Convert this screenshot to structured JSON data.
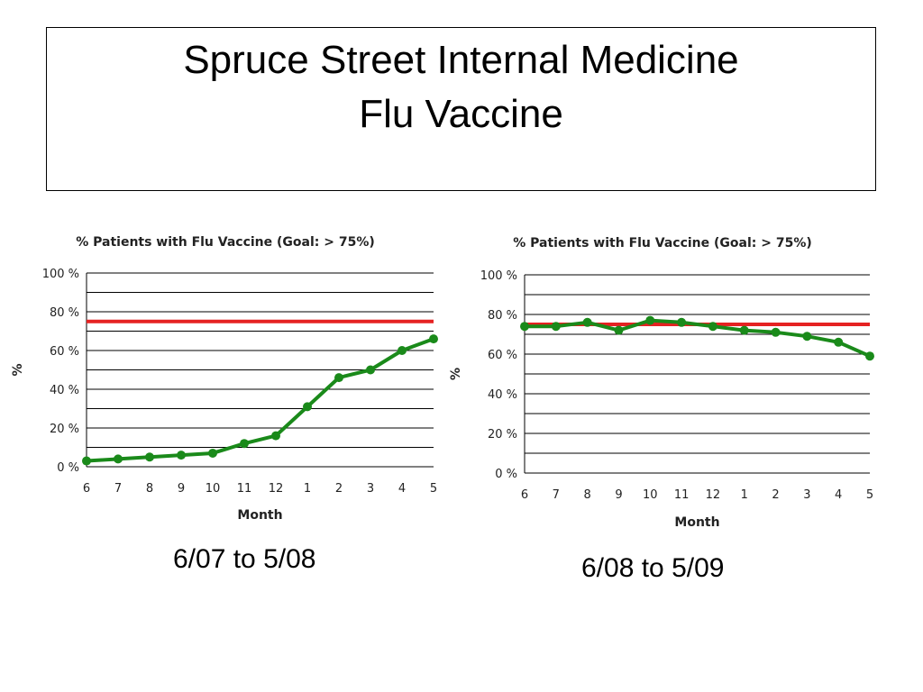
{
  "slide": {
    "title_line1": "Spruce Street Internal Medicine",
    "title_line2": "Flu Vaccine"
  },
  "colors": {
    "series": "#1a8a1a",
    "goal": "#e52222",
    "grid": "#000000"
  },
  "chart_data": [
    {
      "type": "line",
      "title": "% Patients with Flu Vaccine (Goal: > 75%)",
      "xlabel": "Month",
      "ylabel": "%",
      "categories": [
        "6",
        "7",
        "8",
        "9",
        "10",
        "11",
        "12",
        "1",
        "2",
        "3",
        "4",
        "5"
      ],
      "values": [
        3,
        4,
        5,
        6,
        7,
        12,
        16,
        31,
        46,
        50,
        60,
        66
      ],
      "goal": 75,
      "ylim": [
        0,
        100
      ],
      "yticks": [
        0,
        20,
        40,
        60,
        80,
        100
      ],
      "ytick_labels": [
        "0 %",
        "20 %",
        "40 %",
        "60 %",
        "80 %",
        "100 %"
      ],
      "grid": true,
      "caption": "6/07 to 5/08"
    },
    {
      "type": "line",
      "title": "% Patients with Flu Vaccine (Goal: > 75%)",
      "xlabel": "Month",
      "ylabel": "%",
      "categories": [
        "6",
        "7",
        "8",
        "9",
        "10",
        "11",
        "12",
        "1",
        "2",
        "3",
        "4",
        "5"
      ],
      "values": [
        74,
        74,
        76,
        72,
        77,
        76,
        74,
        72,
        71,
        69,
        66,
        59
      ],
      "goal": 75,
      "ylim": [
        0,
        100
      ],
      "yticks": [
        0,
        20,
        40,
        60,
        80,
        100
      ],
      "ytick_labels": [
        "0 %",
        "20 %",
        "40 %",
        "60 %",
        "80 %",
        "100 %"
      ],
      "grid": true,
      "caption": "6/08 to 5/09"
    }
  ]
}
